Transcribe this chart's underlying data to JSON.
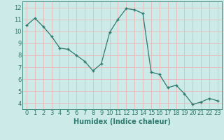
{
  "xlabel": "Humidex (Indice chaleur)",
  "x": [
    0,
    1,
    2,
    3,
    4,
    5,
    6,
    7,
    8,
    9,
    10,
    11,
    12,
    13,
    14,
    15,
    16,
    17,
    18,
    19,
    20,
    21,
    22,
    23
  ],
  "y": [
    10.5,
    11.1,
    10.4,
    9.6,
    8.6,
    8.5,
    8.0,
    7.5,
    6.7,
    7.3,
    9.9,
    11.0,
    11.9,
    11.8,
    11.5,
    6.6,
    6.4,
    5.3,
    5.5,
    4.8,
    3.9,
    4.1,
    4.4,
    4.2
  ],
  "ylim": [
    3.5,
    12.5
  ],
  "yticks": [
    4,
    5,
    6,
    7,
    8,
    9,
    10,
    11,
    12
  ],
  "line_color": "#2d7a6e",
  "marker_color": "#2d7a6e",
  "bg_color": "#cceae8",
  "grid_color": "#e8b8b8",
  "tick_label_color": "#2d7a6e",
  "axis_label_color": "#2d7a6e",
  "font_size": 6.0,
  "xlabel_fontsize": 7.0
}
